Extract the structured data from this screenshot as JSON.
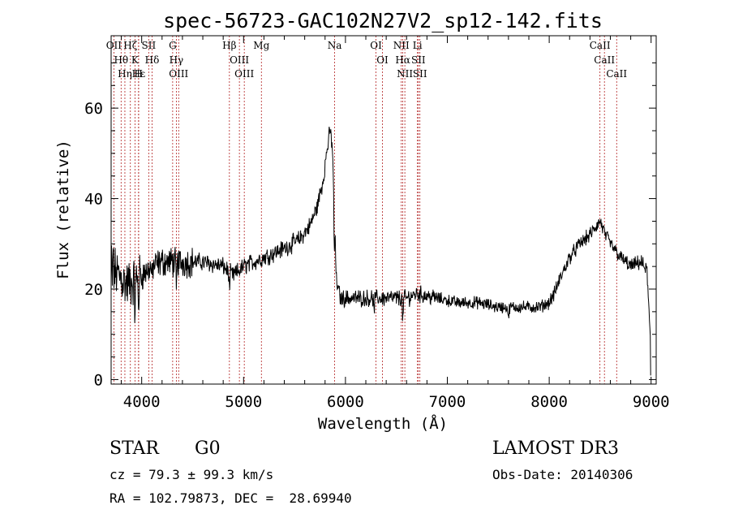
{
  "chart_data": {
    "type": "line",
    "title": "spec-56723-GAC102N27V2_sp12-142.fits",
    "xlabel": "Wavelength (Å)",
    "ylabel": "Flux (relative)",
    "xlim": [
      3700,
      9050
    ],
    "ylim": [
      -1,
      76
    ],
    "xticks": [
      4000,
      5000,
      6000,
      7000,
      8000,
      9000
    ],
    "yticks": [
      0,
      20,
      40,
      60
    ],
    "line_color": "#000000",
    "marker_color": "#b22222",
    "continuum_anchors": [
      [
        3700,
        18
      ],
      [
        3720,
        24
      ],
      [
        3780,
        23
      ],
      [
        3850,
        21
      ],
      [
        3950,
        22
      ],
      [
        4050,
        24
      ],
      [
        4100,
        25
      ],
      [
        4200,
        26
      ],
      [
        4400,
        26
      ],
      [
        4600,
        26
      ],
      [
        4800,
        25
      ],
      [
        4900,
        23
      ],
      [
        5000,
        25
      ],
      [
        5200,
        27
      ],
      [
        5400,
        29
      ],
      [
        5550,
        31
      ],
      [
        5650,
        34
      ],
      [
        5720,
        38
      ],
      [
        5780,
        44
      ],
      [
        5820,
        51
      ],
      [
        5850,
        55
      ],
      [
        5870,
        52
      ],
      [
        5890,
        40
      ],
      [
        5910,
        22
      ],
      [
        5950,
        18
      ],
      [
        6100,
        18
      ],
      [
        6300,
        18
      ],
      [
        6500,
        18
      ],
      [
        6600,
        18
      ],
      [
        6700,
        19
      ],
      [
        6900,
        18
      ],
      [
        7100,
        17
      ],
      [
        7300,
        17
      ],
      [
        7500,
        16
      ],
      [
        7700,
        16
      ],
      [
        7900,
        16
      ],
      [
        8000,
        17
      ],
      [
        8050,
        19
      ],
      [
        8100,
        22
      ],
      [
        8200,
        27
      ],
      [
        8300,
        30
      ],
      [
        8400,
        32
      ],
      [
        8500,
        35
      ],
      [
        8550,
        32
      ],
      [
        8600,
        30
      ],
      [
        8700,
        27
      ],
      [
        8800,
        25
      ],
      [
        8900,
        26
      ],
      [
        8960,
        24
      ],
      [
        8990,
        10
      ],
      [
        9000,
        3
      ]
    ],
    "absorption_dips": [
      [
        3934,
        -6
      ],
      [
        3969,
        -5
      ],
      [
        4101,
        -3
      ],
      [
        4340,
        -6
      ],
      [
        4861,
        -4
      ],
      [
        5890,
        -10
      ],
      [
        6563,
        -5
      ],
      [
        6280,
        -3
      ],
      [
        7600,
        -3
      ]
    ],
    "emission_lines": [
      {
        "label": "OII",
        "wavelength": 3727
      },
      {
        "label": "Hθ",
        "wavelength": 3798
      },
      {
        "label": "Hη",
        "wavelength": 3835
      },
      {
        "label": "Hζ",
        "wavelength": 3889
      },
      {
        "label": "Hε",
        "wavelength": 3970
      },
      {
        "label": "SII",
        "wavelength": 4069
      },
      {
        "label": "Hδ",
        "wavelength": 4102
      },
      {
        "label": "Hγ",
        "wavelength": 4340
      },
      {
        "label": "OIII",
        "wavelength": 4363
      },
      {
        "label": "Hβ",
        "wavelength": 4861
      },
      {
        "label": "OIII",
        "wavelength": 4959
      },
      {
        "label": "OIII",
        "wavelength": 5007
      },
      {
        "label": "OI",
        "wavelength": 6300
      },
      {
        "label": "OI",
        "wavelength": 6363
      },
      {
        "label": "NII",
        "wavelength": 6548
      },
      {
        "label": "Hα",
        "wavelength": 6563
      },
      {
        "label": "NII",
        "wavelength": 6583
      },
      {
        "label": "Li",
        "wavelength": 6707
      },
      {
        "label": "SII",
        "wavelength": 6716
      },
      {
        "label": "SII",
        "wavelength": 6731
      }
    ],
    "absorption_lines": [
      {
        "label": "K",
        "wavelength": 3934
      },
      {
        "label": "H",
        "wavelength": 3969
      },
      {
        "label": "G",
        "wavelength": 4304
      },
      {
        "label": "Mg",
        "wavelength": 5175
      },
      {
        "label": "Na",
        "wavelength": 5894
      },
      {
        "label": "CaII",
        "wavelength": 8498
      },
      {
        "label": "CaII",
        "wavelength": 8542
      },
      {
        "label": "CaII",
        "wavelength": 8662
      }
    ]
  },
  "info": {
    "class_label": "STAR",
    "subclass": "G0",
    "survey": "LAMOST DR3",
    "cz": "cz = 79.3 ± 99.3 km/s",
    "obs_date": "Obs-Date: 20140306",
    "coords": "RA = 102.79873, DEC =  28.69940"
  }
}
